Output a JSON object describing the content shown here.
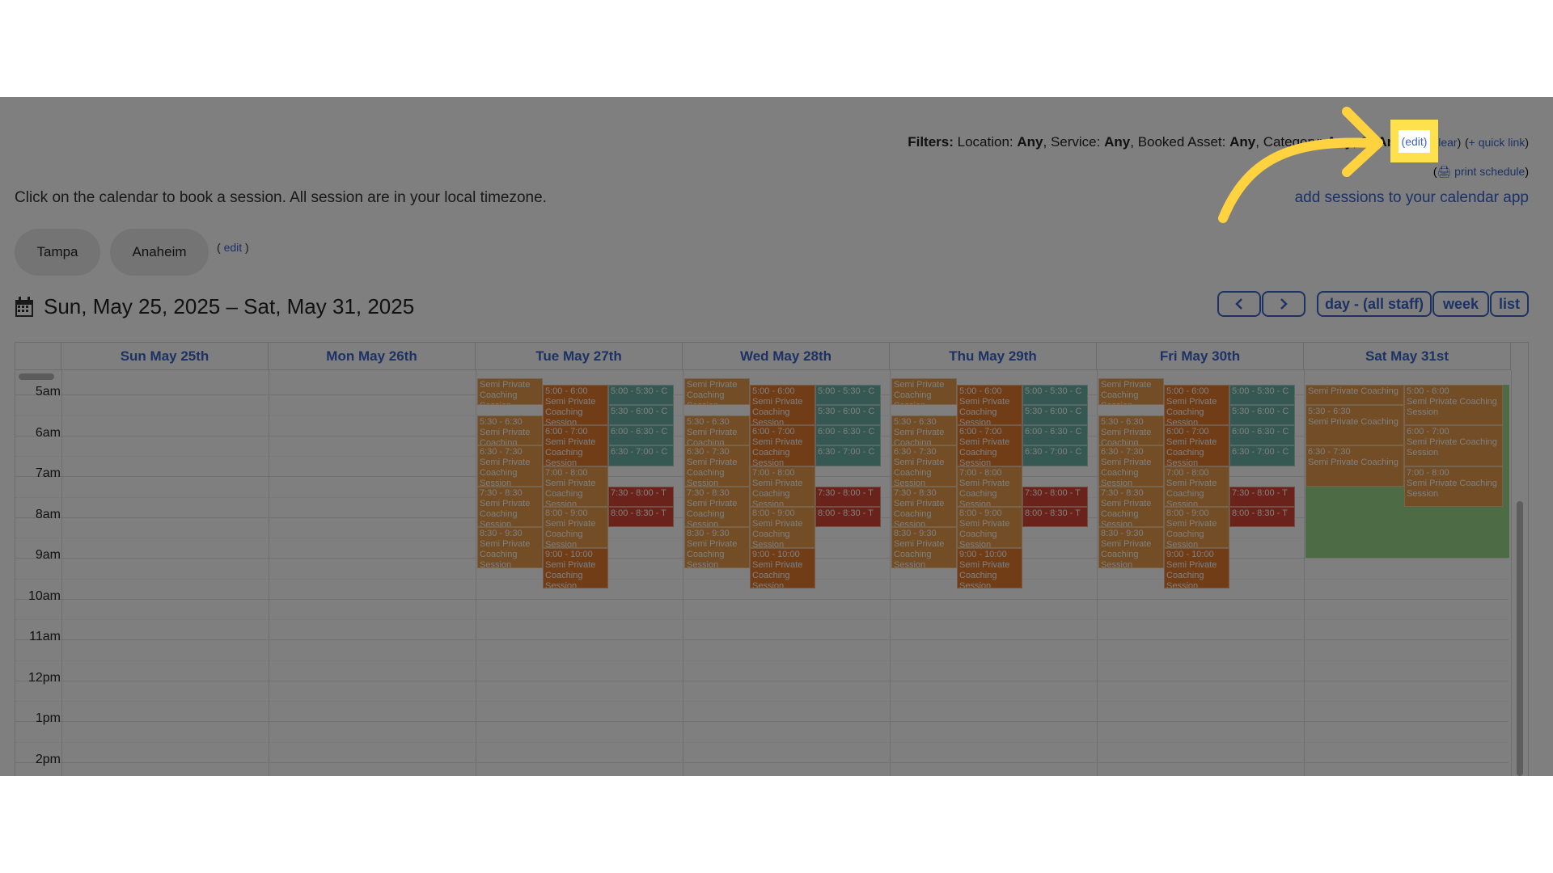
{
  "header": {
    "filters_label": "Filters:",
    "filters": [
      {
        "name": "Location:",
        "value": "Any"
      },
      {
        "name": "Service:",
        "value": "Any"
      },
      {
        "name": "Booked Asset:",
        "value": "Any"
      },
      {
        "name": "Category:",
        "value": "Any"
      },
      {
        "name": "St",
        "value": "An"
      }
    ],
    "edit_link": "edit",
    "clear_link": "clear",
    "quick_link": "+ quick link",
    "print_link": "print schedule",
    "calendar_app_link": "add sessions to your calendar app",
    "intro_text": "Click on the calendar to book a session. All session are in your local timezone."
  },
  "locations": {
    "items": [
      "Tampa",
      "Anaheim"
    ],
    "edit_label": "edit"
  },
  "toolbar": {
    "date_range": "Sun, May 25, 2025 – Sat, May 31, 2025",
    "prev_icon": "chevron-left-icon",
    "next_icon": "chevron-right-icon",
    "views": [
      "day - (all staff)",
      "week",
      "list"
    ]
  },
  "calendar": {
    "days": [
      "Sun May 25th",
      "Mon May 26th",
      "Tue May 27th",
      "Wed May 28th",
      "Thu May 29th",
      "Fri May 30th",
      "Sat May 31st"
    ],
    "hours": [
      "5am",
      "6am",
      "7am",
      "8am",
      "9am",
      "10am",
      "11am",
      "12pm",
      "1pm",
      "2pm"
    ],
    "events": {
      "weekday": [
        {
          "col": 0,
          "time": "",
          "title": "Semi Private Coaching Session",
          "start": 4.6,
          "end": 5.25,
          "kind": "orange"
        },
        {
          "col": 0,
          "time": "5:30 - 6:30",
          "title": "Semi Private Coaching Session",
          "start": 5.5,
          "end": 6.25,
          "kind": "orange"
        },
        {
          "col": 0,
          "time": "6:30 - 7:30",
          "title": "Semi Private Coaching Session",
          "start": 6.25,
          "end": 7.25,
          "kind": "orange"
        },
        {
          "col": 0,
          "time": "7:30 - 8:30",
          "title": "Semi Private Coaching Session",
          "start": 7.25,
          "end": 8.25,
          "kind": "orange"
        },
        {
          "col": 0,
          "time": "8:30 - 9:30",
          "title": "Semi Private Coaching Session",
          "start": 8.25,
          "end": 9.25,
          "kind": "orange"
        },
        {
          "col": 1,
          "time": "5:00 - 6:00",
          "title": "Semi Private Coaching Session",
          "start": 4.75,
          "end": 5.75,
          "kind": "deep"
        },
        {
          "col": 1,
          "time": "6:00 - 7:00",
          "title": "Semi Private Coaching Session",
          "start": 5.75,
          "end": 6.75,
          "kind": "deep"
        },
        {
          "col": 1,
          "time": "7:00 - 8:00",
          "title": "Semi Private Coaching Session",
          "start": 6.75,
          "end": 7.75,
          "kind": "orange"
        },
        {
          "col": 1,
          "time": "8:00 - 9:00",
          "title": "Semi Private Coaching Session",
          "start": 7.75,
          "end": 8.75,
          "kind": "orange"
        },
        {
          "col": 1,
          "time": "9:00 - 10:00",
          "title": "Semi Private Coaching Session",
          "start": 8.75,
          "end": 9.75,
          "kind": "deep"
        },
        {
          "col": 2,
          "time": "5:00 - 5:30 - C",
          "title": "",
          "start": 4.75,
          "end": 5.25,
          "kind": "teal"
        },
        {
          "col": 2,
          "time": "5:30 - 6:00 - C",
          "title": "",
          "start": 5.25,
          "end": 5.75,
          "kind": "teal"
        },
        {
          "col": 2,
          "time": "6:00 - 6:30 - C",
          "title": "",
          "start": 5.75,
          "end": 6.25,
          "kind": "teal"
        },
        {
          "col": 2,
          "time": "6:30 - 7:00 - C",
          "title": "",
          "start": 6.25,
          "end": 6.75,
          "kind": "teal"
        },
        {
          "col": 2,
          "time": "7:30 - 8:00 - T",
          "title": "",
          "start": 7.25,
          "end": 7.75,
          "kind": "red"
        },
        {
          "col": 2,
          "time": "8:00 - 8:30 - T",
          "title": "",
          "start": 7.75,
          "end": 8.25,
          "kind": "red"
        }
      ],
      "saturday": [
        {
          "col": 0,
          "time": "",
          "title": "Semi Private Coaching",
          "start": 4.75,
          "end": 5.25,
          "kind": "orange"
        },
        {
          "col": 0,
          "time": "5:30 - 6:30",
          "title": "Semi Private Coaching",
          "start": 5.25,
          "end": 6.25,
          "kind": "orange"
        },
        {
          "col": 0,
          "time": "6:30 - 7:30",
          "title": "Semi Private Coaching",
          "start": 6.25,
          "end": 7.25,
          "kind": "orange"
        },
        {
          "col": 1,
          "time": "5:00 - 6:00",
          "title": "Semi Private Coaching Session",
          "start": 4.75,
          "end": 5.75,
          "kind": "orange"
        },
        {
          "col": 1,
          "time": "6:00 - 7:00",
          "title": "Semi Private Coaching Session",
          "start": 5.75,
          "end": 6.75,
          "kind": "orange"
        },
        {
          "col": 1,
          "time": "7:00 - 8:00",
          "title": "Semi Private Coaching Session",
          "start": 6.75,
          "end": 7.75,
          "kind": "orange"
        }
      ],
      "saturday_availability": {
        "start": 4.75,
        "end": 9.0
      }
    }
  },
  "colors": {
    "link": "#3a64c8",
    "orange": "#e59a4a",
    "deep": "#e07b2e",
    "teal": "#6bb0a6",
    "red": "#d64535",
    "green": "#9ad88a",
    "highlight": "#ffe04d"
  }
}
